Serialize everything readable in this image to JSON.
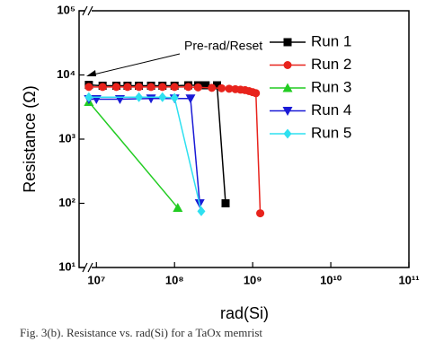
{
  "chart_data": {
    "type": "line",
    "x_label": "rad(Si)",
    "y_label": "Resistance (Ω)",
    "annotation": "Pre-rad/Reset",
    "caption": "Fig. 3(b). Resistance vs. rad(Si) for a TaOx memrist",
    "xscale": "log",
    "yscale": "log",
    "xlim": [
      6000000,
      100000000000
    ],
    "ylim": [
      10,
      100000
    ],
    "xticks": [
      {
        "value": 10000000,
        "label": "10⁷"
      },
      {
        "value": 100000000,
        "label": "10⁸"
      },
      {
        "value": 1000000000,
        "label": "10⁹"
      },
      {
        "value": 10000000000,
        "label": "10¹⁰"
      },
      {
        "value": 100000000000,
        "label": "10¹¹"
      }
    ],
    "yticks": [
      {
        "value": 10,
        "label": "10¹"
      },
      {
        "value": 100,
        "label": "10²"
      },
      {
        "value": 1000,
        "label": "10³"
      },
      {
        "value": 10000,
        "label": "10⁴"
      },
      {
        "value": 100000,
        "label": "10⁵"
      }
    ],
    "legend": "upper right",
    "series": [
      {
        "name": "Run 1",
        "color": "#000000",
        "marker": "square",
        "x": [
          8000000,
          12000000,
          18000000,
          25000000,
          35000000,
          50000000,
          70000000,
          100000000,
          150000000,
          200000000,
          250000000,
          350000000,
          450000000
        ],
        "values": [
          7000,
          6800,
          6800,
          6800,
          6800,
          6800,
          6800,
          6800,
          6900,
          6900,
          6900,
          6900,
          100
        ]
      },
      {
        "name": "Run 2",
        "color": "#e8231c",
        "marker": "circle",
        "x": [
          8000000,
          12000000,
          18000000,
          25000000,
          35000000,
          50000000,
          70000000,
          100000000,
          150000000,
          200000000,
          300000000,
          400000000,
          500000000,
          600000000,
          700000000,
          800000000,
          900000000,
          1000000000,
          1100000000,
          1250000000
        ],
        "values": [
          6500,
          6500,
          6500,
          6500,
          6500,
          6500,
          6500,
          6500,
          6500,
          6400,
          6300,
          6200,
          6100,
          6000,
          5900,
          5800,
          5600,
          5400,
          5200,
          70
        ]
      },
      {
        "name": "Run 3",
        "color": "#22cc22",
        "marker": "triangle-up",
        "x": [
          8000000,
          110000000
        ],
        "values": [
          3800,
          85
        ]
      },
      {
        "name": "Run 4",
        "color": "#1a1ad6",
        "marker": "triangle-down",
        "x": [
          8000000,
          10000000,
          20000000,
          50000000,
          100000000,
          160000000,
          210000000
        ],
        "values": [
          4200,
          4200,
          4200,
          4300,
          4300,
          4300,
          100
        ]
      },
      {
        "name": "Run 5",
        "color": "#2ee0f0",
        "marker": "diamond",
        "x": [
          8000000,
          35000000,
          70000000,
          100000000,
          220000000
        ],
        "values": [
          4500,
          4500,
          4500,
          4400,
          75
        ]
      }
    ]
  }
}
